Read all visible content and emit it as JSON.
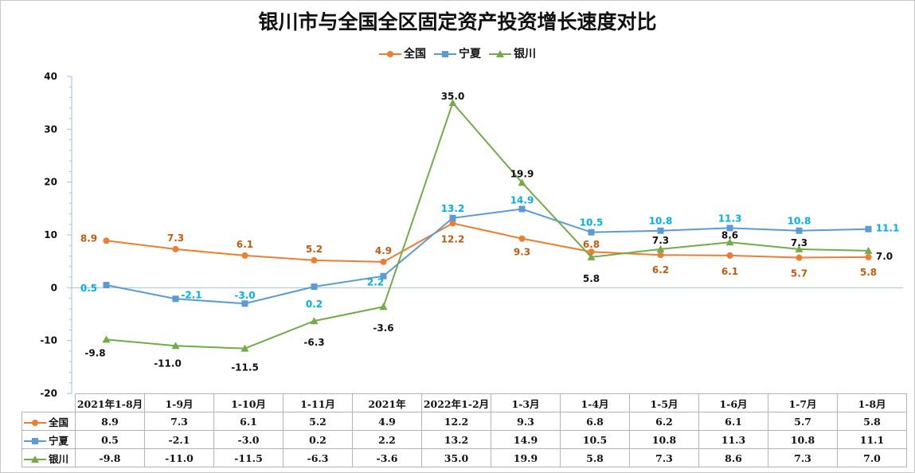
{
  "colors": {
    "national": "#ED7D31",
    "ningxia": "#5B9BD5",
    "yinchuan": "#70AD47",
    "ningxia_label": "#00B0F0",
    "national_label": "#C55A11",
    "yinchuan_label": "#111111"
  },
  "chart_data": {
    "type": "line",
    "title": "银川市与全国全区固定资产投资增长速度对比",
    "categories": [
      "2021年1-8月",
      "1-9月",
      "1-10月",
      "1-11月",
      "2021年",
      "2022年1-2月",
      "1-3月",
      "1-4月",
      "1-5月",
      "1-6月",
      "1-7月",
      "1-8月"
    ],
    "ylim": [
      -20,
      40
    ],
    "yticks": [
      -20,
      -10,
      0,
      10,
      20,
      30,
      40
    ],
    "legend_position": "top-center",
    "grid": false,
    "series": [
      {
        "name": "全国",
        "marker": "circle",
        "values": [
          8.9,
          7.3,
          6.1,
          5.2,
          4.9,
          12.2,
          9.3,
          6.8,
          6.2,
          6.1,
          5.7,
          5.8
        ],
        "labels": [
          "8.9",
          "7.3",
          "6.1",
          "5.2",
          "4.9",
          "12.2",
          "9.3",
          "6.8",
          "6.2",
          "6.1",
          "5.7",
          "5.8"
        ]
      },
      {
        "name": "宁夏",
        "marker": "square",
        "values": [
          0.5,
          -2.1,
          -3.0,
          0.2,
          2.2,
          13.2,
          14.9,
          10.5,
          10.8,
          11.3,
          10.8,
          11.1
        ],
        "labels": [
          "0.5",
          "-2.1",
          "-3.0",
          "0.2",
          "2.2",
          "13.2",
          "14.9",
          "10.5",
          "10.8",
          "11.3",
          "10.8",
          "11.1"
        ]
      },
      {
        "name": "银川",
        "marker": "triangle",
        "values": [
          -9.8,
          -11.0,
          -11.5,
          -6.3,
          -3.6,
          35.0,
          19.9,
          5.8,
          7.3,
          8.6,
          7.3,
          7.0
        ],
        "labels": [
          "-9.8",
          "-11.0",
          "-11.5",
          "-6.3",
          "-3.6",
          "35.0",
          "19.9",
          "5.8",
          "7.3",
          "8.6",
          "7.3",
          "7.0"
        ]
      }
    ]
  }
}
